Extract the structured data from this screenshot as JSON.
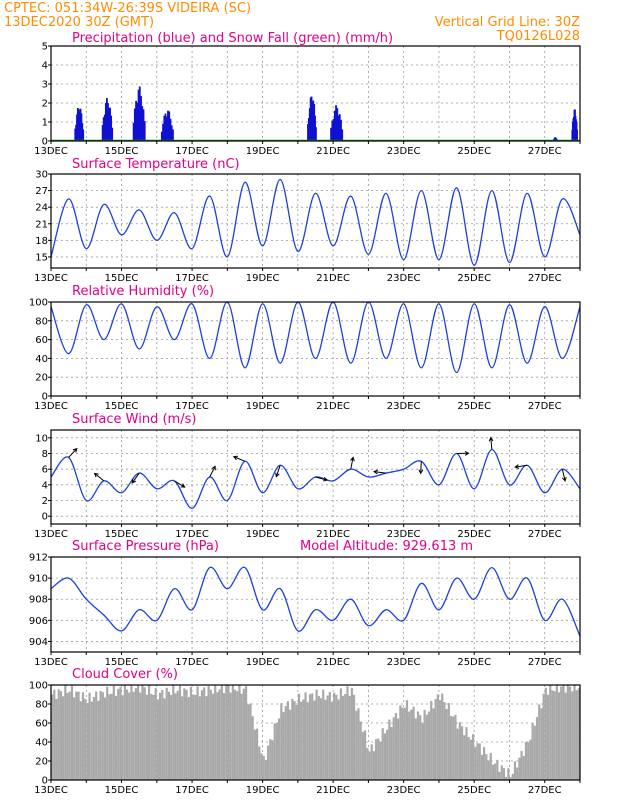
{
  "header": {
    "line1": "CPTEC:   051:34W-26:39S   VIDEIRA (SC)",
    "line2_left": "13DEC2020 30Z (GMT)",
    "line2_right": "Vertical Grid Line: 30Z",
    "line3_right": "TQ0126L028"
  },
  "colors": {
    "header": "#ff8c00",
    "title": "#e0008a",
    "series": "#1f3fe0",
    "precip": "#1010d0",
    "snow": "#00a000",
    "cloud": "#a9a9a9",
    "grid": "#999999"
  },
  "x_labels": [
    "13DEC",
    "15DEC",
    "17DEC",
    "19DEC",
    "21DEC",
    "23DEC",
    "25DEC",
    "27DEC"
  ],
  "chart_data": [
    {
      "type": "bar",
      "title": "Precipitation (blue) and Snow Fall (green) (mm/h)",
      "ylim": [
        0,
        5
      ],
      "yticks": [
        0,
        1,
        2,
        3,
        4,
        5
      ],
      "x_range_days": [
        0,
        15
      ],
      "series": [
        {
          "name": "Precipitation",
          "events": [
            [
              0.8,
              0.25,
              1.9
            ],
            [
              1.6,
              0.3,
              2.3
            ],
            [
              2.5,
              0.35,
              2.9
            ],
            [
              3.3,
              0.35,
              1.7
            ],
            [
              7.4,
              0.25,
              2.5
            ],
            [
              8.1,
              0.35,
              1.9
            ],
            [
              14.3,
              0.1,
              0.2
            ],
            [
              14.85,
              0.15,
              1.7
            ]
          ]
        },
        {
          "name": "Snow Fall",
          "values": [
            0
          ]
        }
      ]
    },
    {
      "type": "line",
      "title": "Surface Temperature (nC)",
      "ylim": [
        13,
        30
      ],
      "yticks": [
        15,
        18,
        21,
        24,
        27,
        30
      ],
      "x": [
        0,
        0.5,
        1,
        1.5,
        2,
        2.5,
        3,
        3.5,
        4,
        4.5,
        5,
        5.5,
        6,
        6.5,
        7,
        7.5,
        8,
        8.5,
        9,
        9.5,
        10,
        10.5,
        11,
        11.5,
        12,
        12.5,
        13,
        13.5,
        14,
        14.5,
        15
      ],
      "values": [
        15,
        25.5,
        16.5,
        24.5,
        19,
        23.5,
        18,
        23,
        16.5,
        26,
        15,
        28.5,
        17,
        29,
        16,
        26.5,
        17,
        26,
        15.5,
        26.5,
        14.5,
        27,
        14.5,
        27.5,
        13.5,
        27,
        14,
        26.5,
        15,
        25.5,
        19
      ]
    },
    {
      "type": "line",
      "title": "Relative Humidity (%)",
      "ylim": [
        0,
        100
      ],
      "yticks": [
        0,
        20,
        40,
        60,
        80,
        100
      ],
      "x": [
        0,
        0.5,
        1,
        1.5,
        2,
        2.5,
        3,
        3.5,
        4,
        4.5,
        5,
        5.5,
        6,
        6.5,
        7,
        7.5,
        8,
        8.5,
        9,
        9.5,
        10,
        10.5,
        11,
        11.5,
        12,
        12.5,
        13,
        13.5,
        14,
        14.5,
        15
      ],
      "values": [
        95,
        45,
        97,
        60,
        98,
        50,
        95,
        60,
        98,
        40,
        100,
        30,
        98,
        35,
        100,
        40,
        100,
        35,
        100,
        40,
        98,
        30,
        98,
        25,
        98,
        30,
        97,
        35,
        95,
        40,
        95
      ]
    },
    {
      "type": "line",
      "title": "Surface Wind (m/s)",
      "ylim": [
        -1,
        11
      ],
      "yticks": [
        0,
        2,
        4,
        6,
        8,
        10
      ],
      "x": [
        0,
        0.5,
        1,
        1.5,
        2,
        2.5,
        3,
        3.5,
        4,
        4.5,
        5,
        5.5,
        6,
        6.5,
        7,
        7.5,
        8,
        8.5,
        9,
        9.5,
        10,
        10.5,
        11,
        11.5,
        12,
        12.5,
        13,
        13.5,
        14,
        14.5,
        15
      ],
      "values": [
        5,
        7.5,
        2,
        4.5,
        3,
        5.5,
        3.5,
        4.5,
        1,
        5,
        2,
        7,
        3,
        6.5,
        3.5,
        5,
        4.5,
        6,
        5,
        5.5,
        6,
        7,
        4,
        8,
        3.5,
        8.5,
        4,
        6.5,
        3,
        6,
        3.5
      ]
    },
    {
      "type": "line",
      "title": "Surface Pressure (hPa)",
      "annotation": "Model Altitude: 929.613 m",
      "ylim": [
        903,
        912
      ],
      "yticks": [
        904,
        906,
        908,
        910,
        912
      ],
      "x": [
        0,
        0.5,
        1,
        1.5,
        2,
        2.5,
        3,
        3.5,
        4,
        4.5,
        5,
        5.5,
        6,
        6.5,
        7,
        7.5,
        8,
        8.5,
        9,
        9.5,
        10,
        10.5,
        11,
        11.5,
        12,
        12.5,
        13,
        13.5,
        14,
        14.5,
        15
      ],
      "values": [
        909,
        910,
        908,
        906.5,
        905,
        907,
        906,
        909,
        907,
        911,
        909,
        911,
        907,
        909,
        905,
        907,
        906,
        908,
        905.5,
        907,
        906,
        909.5,
        907,
        910,
        908,
        911,
        908,
        910,
        906,
        908,
        904.5
      ]
    },
    {
      "type": "bar",
      "title": "Cloud Cover (%)",
      "ylim": [
        0,
        100
      ],
      "yticks": [
        0,
        20,
        40,
        60,
        80,
        100
      ],
      "x": [
        0,
        0.5,
        1,
        1.5,
        2,
        2.5,
        3,
        3.5,
        4,
        4.5,
        5,
        5.5,
        6,
        6.5,
        7,
        7.5,
        8,
        8.5,
        9,
        9.5,
        10,
        10.5,
        11,
        11.5,
        12,
        12.5,
        13,
        13.5,
        14,
        14.5,
        15
      ],
      "values": [
        90,
        95,
        85,
        92,
        95,
        98,
        90,
        95,
        92,
        95,
        98,
        95,
        20,
        75,
        85,
        90,
        88,
        95,
        30,
        55,
        80,
        65,
        90,
        60,
        40,
        20,
        5,
        40,
        95,
        98,
        98
      ]
    }
  ]
}
